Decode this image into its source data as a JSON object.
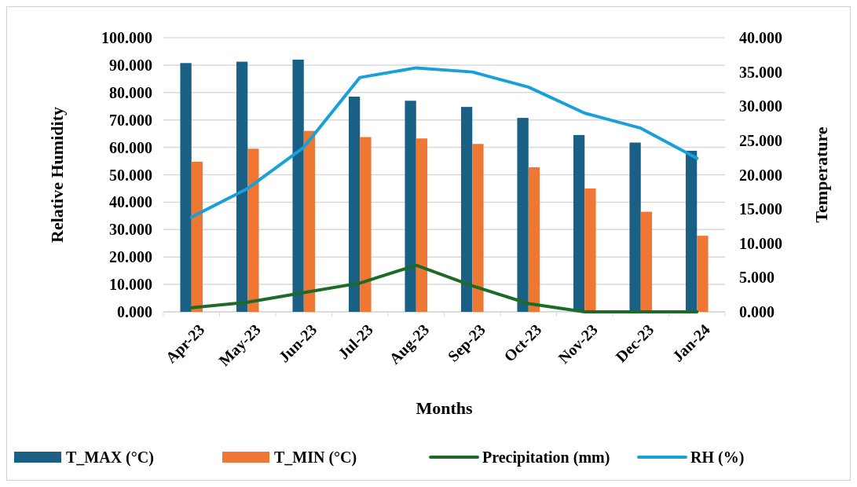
{
  "chart_data": {
    "type": "bar",
    "xlabel": "Months",
    "ylabel": "Relative Humidity",
    "y2label": "Temperature",
    "categories": [
      "Apr-23",
      "May-23",
      "Jun-23",
      "Jul-23",
      "Aug-23",
      "Sep-23",
      "Oct-23",
      "Nov-23",
      "Dec-23",
      "Jan-24"
    ],
    "series": [
      {
        "name": "T_MAX (°C)",
        "axis": "y2",
        "color": "#1a5f84",
        "values": [
          36.3,
          36.5,
          36.8,
          31.4,
          30.8,
          29.9,
          28.3,
          25.8,
          24.7,
          23.5
        ]
      },
      {
        "name": "T_MIN (°C)",
        "axis": "y2",
        "color": "#ee7733",
        "values": [
          21.9,
          23.8,
          26.4,
          25.5,
          25.3,
          24.5,
          21.1,
          18.0,
          14.6,
          11.1
        ]
      },
      {
        "name": "Precipitation (mm)",
        "type": "line",
        "color": "#1e6b28",
        "values": [
          1.5,
          3.5,
          7,
          10.5,
          17,
          9.5,
          3,
          0,
          0,
          0
        ]
      },
      {
        "name": "RH (%)",
        "type": "line",
        "color": "#1aa0d8",
        "values": [
          34.5,
          45,
          60,
          85.5,
          89,
          87.5,
          82,
          72.5,
          67,
          56
        ]
      }
    ],
    "ylim": [
      0,
      100
    ],
    "yticks": [
      {
        "value": 0,
        "label": "0.000"
      },
      {
        "value": 10,
        "label": "10.000"
      },
      {
        "value": 20,
        "label": "20.000"
      },
      {
        "value": 30,
        "label": "30.000"
      },
      {
        "value": 40,
        "label": "40.000"
      },
      {
        "value": 50,
        "label": "50.000"
      },
      {
        "value": 60,
        "label": "60.000"
      },
      {
        "value": 70,
        "label": "70.000"
      },
      {
        "value": 80,
        "label": "80.000"
      },
      {
        "value": 90,
        "label": "90.000"
      },
      {
        "value": 100,
        "label": "100.000"
      }
    ],
    "y2lim": [
      0,
      40
    ],
    "y2ticks": [
      {
        "value": 0,
        "label": "0.000"
      },
      {
        "value": 5,
        "label": "5.000"
      },
      {
        "value": 10,
        "label": "10.000"
      },
      {
        "value": 15,
        "label": "15.000"
      },
      {
        "value": 20,
        "label": "20.000"
      },
      {
        "value": 25,
        "label": "25.000"
      },
      {
        "value": 30,
        "label": "30.000"
      },
      {
        "value": 35,
        "label": "35.000"
      },
      {
        "value": 40,
        "label": "40.000"
      }
    ],
    "grid": "y",
    "legend": "bottom",
    "marker": "none"
  }
}
